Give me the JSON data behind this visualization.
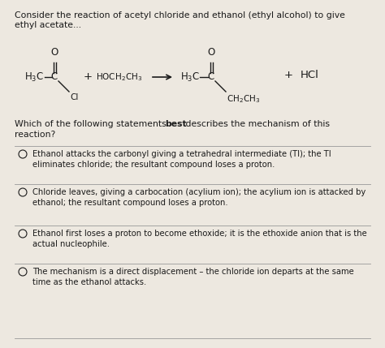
{
  "background_color": "#ede8e0",
  "title_line1": "Consider the reaction of acetyl chloride and ethanol (ethyl alcohol) to give",
  "title_line2": "ethyl acetate...",
  "question_line1": "Which of the following statements ",
  "question_bold": "best",
  "question_line1b": " describes the mechanism of this",
  "question_line2": "reaction?",
  "options": [
    "Ethanol attacks the carbonyl giving a tetrahedral intermediate (TI); the TI\neliminates chloride; the resultant compound loses a proton.",
    "Chloride leaves, giving a carbocation (acylium ion); the acylium ion is attacked by\nethanol; the resultant compound loses a proton.",
    "Ethanol first loses a proton to become ethoxide; it is the ethoxide anion that is the\nactual nucleophile.",
    "The mechanism is a direct displacement – the chloride ion departs at the same\ntime as the ethanol attacks."
  ],
  "text_color": "#1a1a1a",
  "line_color": "#999999",
  "font_size_title": 7.8,
  "font_size_question": 7.8,
  "font_size_options": 7.2,
  "font_size_chem": 7.5
}
